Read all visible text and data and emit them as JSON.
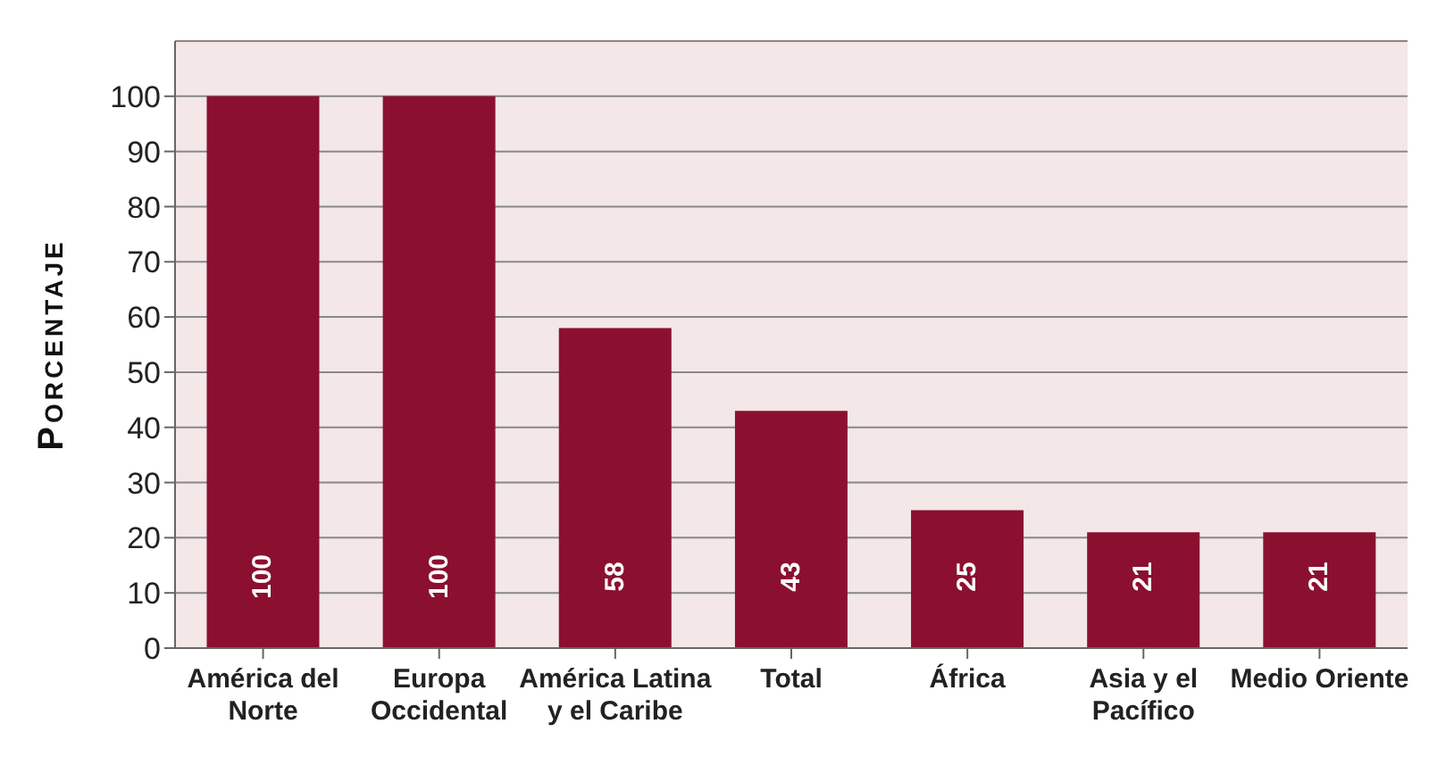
{
  "chart_data": {
    "type": "bar",
    "ylabel": "Porcentaje",
    "categories": [
      "América del Norte",
      "Europa Occidental",
      "América Latina y el Caribe",
      "Total",
      "África",
      "Asia y el Pacífico",
      "Medio Oriente"
    ],
    "values": [
      100,
      100,
      58,
      43,
      25,
      21,
      21
    ],
    "color": "#8b1030",
    "ylim": [
      0,
      110
    ],
    "yticks": [
      0,
      10,
      20,
      30,
      40,
      50,
      60,
      70,
      80,
      90,
      100
    ],
    "grid": "y",
    "data_labels": true
  }
}
